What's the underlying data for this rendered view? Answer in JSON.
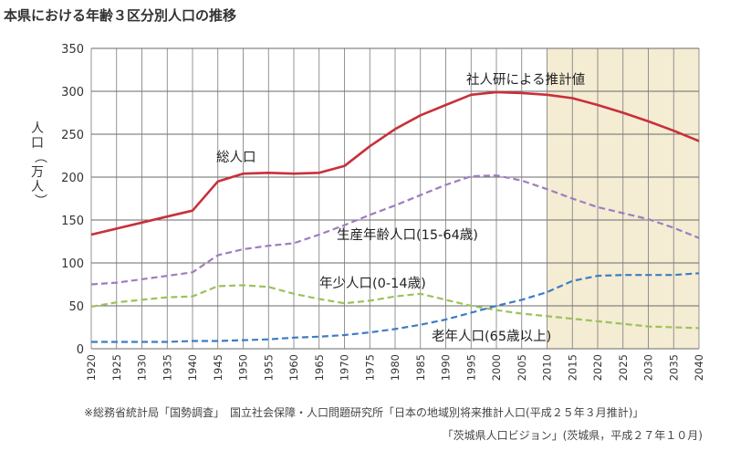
{
  "chart_data": {
    "type": "line",
    "title": "本県における年齢３区分別人口の推移",
    "ylabel": "人口(万人)",
    "xlabel": "",
    "ylim": [
      0,
      350
    ],
    "yticks": [
      0,
      50,
      100,
      150,
      200,
      250,
      300,
      350
    ],
    "x": [
      1920,
      1925,
      1930,
      1935,
      1940,
      1945,
      1950,
      1955,
      1960,
      1965,
      1970,
      1975,
      1980,
      1985,
      1990,
      1995,
      2000,
      2005,
      2010,
      2015,
      2020,
      2025,
      2030,
      2035,
      2040
    ],
    "xlim": [
      1920,
      2040
    ],
    "grid": true,
    "projection_start": 2010,
    "projection_label": "社人研による推計値",
    "series": [
      {
        "name": "総人口",
        "style": "solid",
        "color": "#c8303a",
        "values": [
          133,
          140,
          147,
          154,
          161,
          195,
          204,
          205,
          204,
          205,
          213,
          236,
          256,
          272,
          284,
          296,
          299,
          298,
          296,
          292,
          284,
          275,
          265,
          254,
          242
        ]
      },
      {
        "name": "生産年齢人口(15-64歳)",
        "style": "dashed",
        "color": "#a07cc0",
        "values": [
          75,
          77,
          81,
          85,
          89,
          109,
          116,
          120,
          123,
          133,
          144,
          156,
          167,
          179,
          191,
          201,
          202,
          196,
          186,
          175,
          165,
          158,
          151,
          141,
          129
        ]
      },
      {
        "name": "年少人口(0-14歳)",
        "style": "dashed",
        "color": "#9cc25a",
        "values": [
          49,
          54,
          57,
          60,
          61,
          73,
          74,
          72,
          64,
          58,
          53,
          56,
          61,
          64,
          57,
          50,
          45,
          41,
          38,
          35,
          32,
          29,
          26,
          25,
          24
        ]
      },
      {
        "name": "老年人口(65歳以上)",
        "style": "dashed",
        "color": "#3e7cc4",
        "values": [
          8,
          8,
          8,
          8,
          9,
          9,
          10,
          11,
          13,
          14,
          16,
          19,
          23,
          28,
          34,
          42,
          50,
          57,
          66,
          79,
          85,
          86,
          86,
          86,
          88
        ]
      }
    ]
  },
  "source": {
    "line1": "※総務省統計局「国勢調査」　国立社会保障・人口問題研究所「日本の地域別将来推計人口(平成２５年３月推計)」",
    "line2": "「茨城県人口ビジョン」(茨城県，平成２７年１０月)"
  }
}
